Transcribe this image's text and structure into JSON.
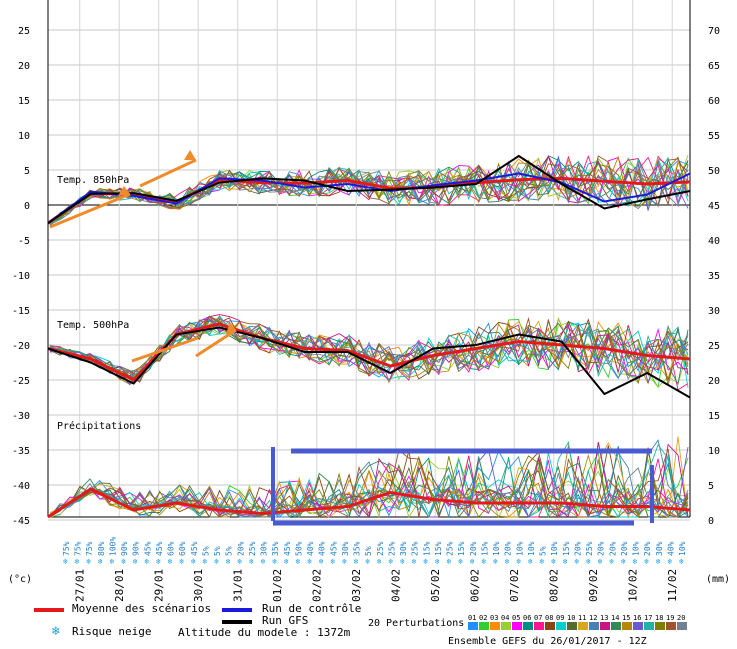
{
  "chart_data": {
    "type": "line",
    "left_axis": {
      "unit": "(°c)",
      "ticks": [
        "25",
        "20",
        "15",
        "10",
        "5",
        "0",
        "-5",
        "-10",
        "-15",
        "-20",
        "-25",
        "-30",
        "-35",
        "-40",
        "-45"
      ]
    },
    "right_axis": {
      "unit": "(mm)",
      "ticks": [
        "70",
        "65",
        "60",
        "55",
        "50",
        "45",
        "40",
        "35",
        "30",
        "25",
        "20",
        "15",
        "10",
        "5",
        "0"
      ]
    },
    "panels": [
      {
        "label": "Temp. 850hPa",
        "ylim": [
          -45,
          25
        ]
      },
      {
        "label": "Temp. 500hPa",
        "ylim": [
          -45,
          25
        ]
      },
      {
        "label": "Précipitations",
        "ylim": [
          0,
          70
        ]
      }
    ],
    "dates": [
      "27/01",
      "28/01",
      "29/01",
      "30/01",
      "31/01",
      "01/02",
      "02/02",
      "03/02",
      "04/02",
      "05/02",
      "06/02",
      "07/02",
      "08/02",
      "09/02",
      "10/02",
      "11/02"
    ],
    "snow_risk_pct": [
      "75%",
      "75%",
      "75%",
      "80%",
      "100%",
      "90%",
      "90%",
      "45%",
      "45%",
      "60%",
      "60%",
      "45%",
      "5%",
      "5%",
      "5%",
      "20%",
      "25%",
      "30%",
      "35%",
      "45%",
      "50%",
      "40%",
      "40%",
      "45%",
      "30%",
      "35%",
      "5%",
      "25%",
      "25%",
      "30%",
      "25%",
      "15%",
      "15%",
      "25%",
      "15%",
      "20%",
      "15%",
      "10%",
      "20%",
      "10%",
      "10%",
      "5%",
      "10%",
      "15%",
      "20%",
      "25%",
      "20%",
      "20%",
      "20%",
      "10%",
      "20%",
      "30%",
      "40%",
      "10%"
    ],
    "series": [
      {
        "name": "Moyenne des scénarios",
        "color": "#e41a1a",
        "panel": "850hPa",
        "values": [
          -2.6,
          1.7,
          1.5,
          0.4,
          3.6,
          3.2,
          3.1,
          3.5,
          2.4,
          2.5,
          3.2,
          3.6,
          3.8,
          3.4,
          3.0,
          3.3
        ]
      },
      {
        "name": "Moyenne des scénarios",
        "color": "#e41a1a",
        "panel": "500hPa",
        "values": [
          -20.5,
          -22.0,
          -25.0,
          -18.5,
          -17.0,
          -19.0,
          -20.5,
          -20.8,
          -23.0,
          -21.5,
          -20.5,
          -19.5,
          -20.0,
          -20.5,
          -21.5,
          -22.0
        ]
      },
      {
        "name": "Moyenne des scénarios",
        "color": "#e41a1a",
        "panel": "precip",
        "values": [
          0,
          4,
          1,
          2,
          1,
          0.5,
          1,
          1.5,
          3.5,
          2.5,
          2.0,
          2.0,
          2.0,
          1.5,
          1.5,
          1.0
        ]
      },
      {
        "name": "Run de contrôle",
        "color": "#1a1ad8",
        "panel": "850hPa",
        "values": [
          -2.6,
          1.9,
          1.3,
          0.2,
          3.8,
          3.5,
          2.5,
          3.0,
          2.0,
          2.8,
          3.5,
          4.5,
          3.2,
          0.5,
          1.5,
          4.5
        ]
      },
      {
        "name": "Run GFS",
        "color": "#000000",
        "panel": "850hPa",
        "values": [
          -2.6,
          1.6,
          1.7,
          0.6,
          3.2,
          3.8,
          3.5,
          2.0,
          2.2,
          2.5,
          3.0,
          7.0,
          3.0,
          -0.5,
          0.8,
          2.0
        ]
      },
      {
        "name": "Run GFS",
        "color": "#000000",
        "panel": "500hPa",
        "values": [
          -20.5,
          -22.5,
          -25.5,
          -18.5,
          -17.5,
          -19.0,
          -21.0,
          -21.0,
          -24.0,
          -20.5,
          -20.0,
          -18.5,
          -19.5,
          -27.0,
          -24.0,
          -27.5
        ]
      }
    ],
    "perturbations_label": "20 Perturbations",
    "perturbation_ids": [
      "01",
      "02",
      "03",
      "04",
      "05",
      "06",
      "07",
      "08",
      "09",
      "10",
      "11",
      "12",
      "13",
      "14",
      "15",
      "16",
      "17",
      "18",
      "19",
      "20"
    ],
    "perturbation_colors": [
      "#1e90ff",
      "#32cd32",
      "#ff8c00",
      "#9acd32",
      "#ff00ff",
      "#008b8b",
      "#ff1493",
      "#8b4513",
      "#00ced1",
      "#556b2f",
      "#daa520",
      "#4682b4",
      "#c71585",
      "#2e8b57",
      "#b8860b",
      "#6a5acd",
      "#20b2aa",
      "#808000",
      "#a0522d",
      "#708090"
    ]
  },
  "legend": {
    "mean": "Moyenne des scénarios",
    "control": "Run de contrôle",
    "gfs": "Run GFS",
    "snow": "Risque neige",
    "altitude": "Altitude du modele : 1372m",
    "perturbations": "20 Perturbations",
    "ensemble": "Ensemble GEFS du 26/01/2017 - 12Z"
  },
  "annotations": {
    "arrow_color": "#f08a2a",
    "box_color": "#4a5ad0"
  }
}
